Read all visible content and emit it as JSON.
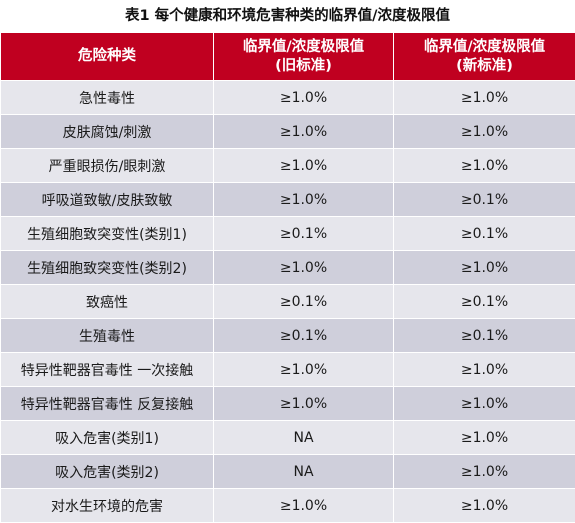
{
  "caption": "表1 每个健康和环境危害种类的临界值/浓度极限值",
  "headers": {
    "hazard": "危险种类",
    "old_line1": "临界值/浓度极限值",
    "old_line2": "(旧标准)",
    "new_line1": "临界值/浓度极限值",
    "new_line2": "(新标准)"
  },
  "rows": [
    {
      "hazard": "急性毒性",
      "old": "≥1.0%",
      "new": "≥1.0%"
    },
    {
      "hazard": "皮肤腐蚀/刺激",
      "old": "≥1.0%",
      "new": "≥1.0%"
    },
    {
      "hazard": "严重眼损伤/眼刺激",
      "old": "≥1.0%",
      "new": "≥1.0%"
    },
    {
      "hazard": "呼吸道致敏/皮肤致敏",
      "old": "≥1.0%",
      "new": "≥0.1%"
    },
    {
      "hazard": "生殖细胞致突变性(类别1)",
      "old": "≥0.1%",
      "new": "≥0.1%"
    },
    {
      "hazard": "生殖细胞致突变性(类别2)",
      "old": "≥1.0%",
      "new": "≥1.0%"
    },
    {
      "hazard": "致癌性",
      "old": "≥0.1%",
      "new": "≥0.1%"
    },
    {
      "hazard": "生殖毒性",
      "old": "≥0.1%",
      "new": "≥0.1%"
    },
    {
      "hazard": "特异性靶器官毒性 一次接触",
      "old": "≥1.0%",
      "new": "≥1.0%"
    },
    {
      "hazard": "特异性靶器官毒性 反复接触",
      "old": "≥1.0%",
      "new": "≥1.0%"
    },
    {
      "hazard": "吸入危害(类别1)",
      "old": "NA",
      "new": "≥1.0%"
    },
    {
      "hazard": "吸入危害(类别2)",
      "old": "NA",
      "new": "≥1.0%"
    },
    {
      "hazard": "对水生环境的危害",
      "old": "≥1.0%",
      "new": "≥1.0%"
    }
  ],
  "colors": {
    "header_bg": "#c00020",
    "row_light": "#e6e6ec",
    "row_dark": "#cfcfdb"
  }
}
